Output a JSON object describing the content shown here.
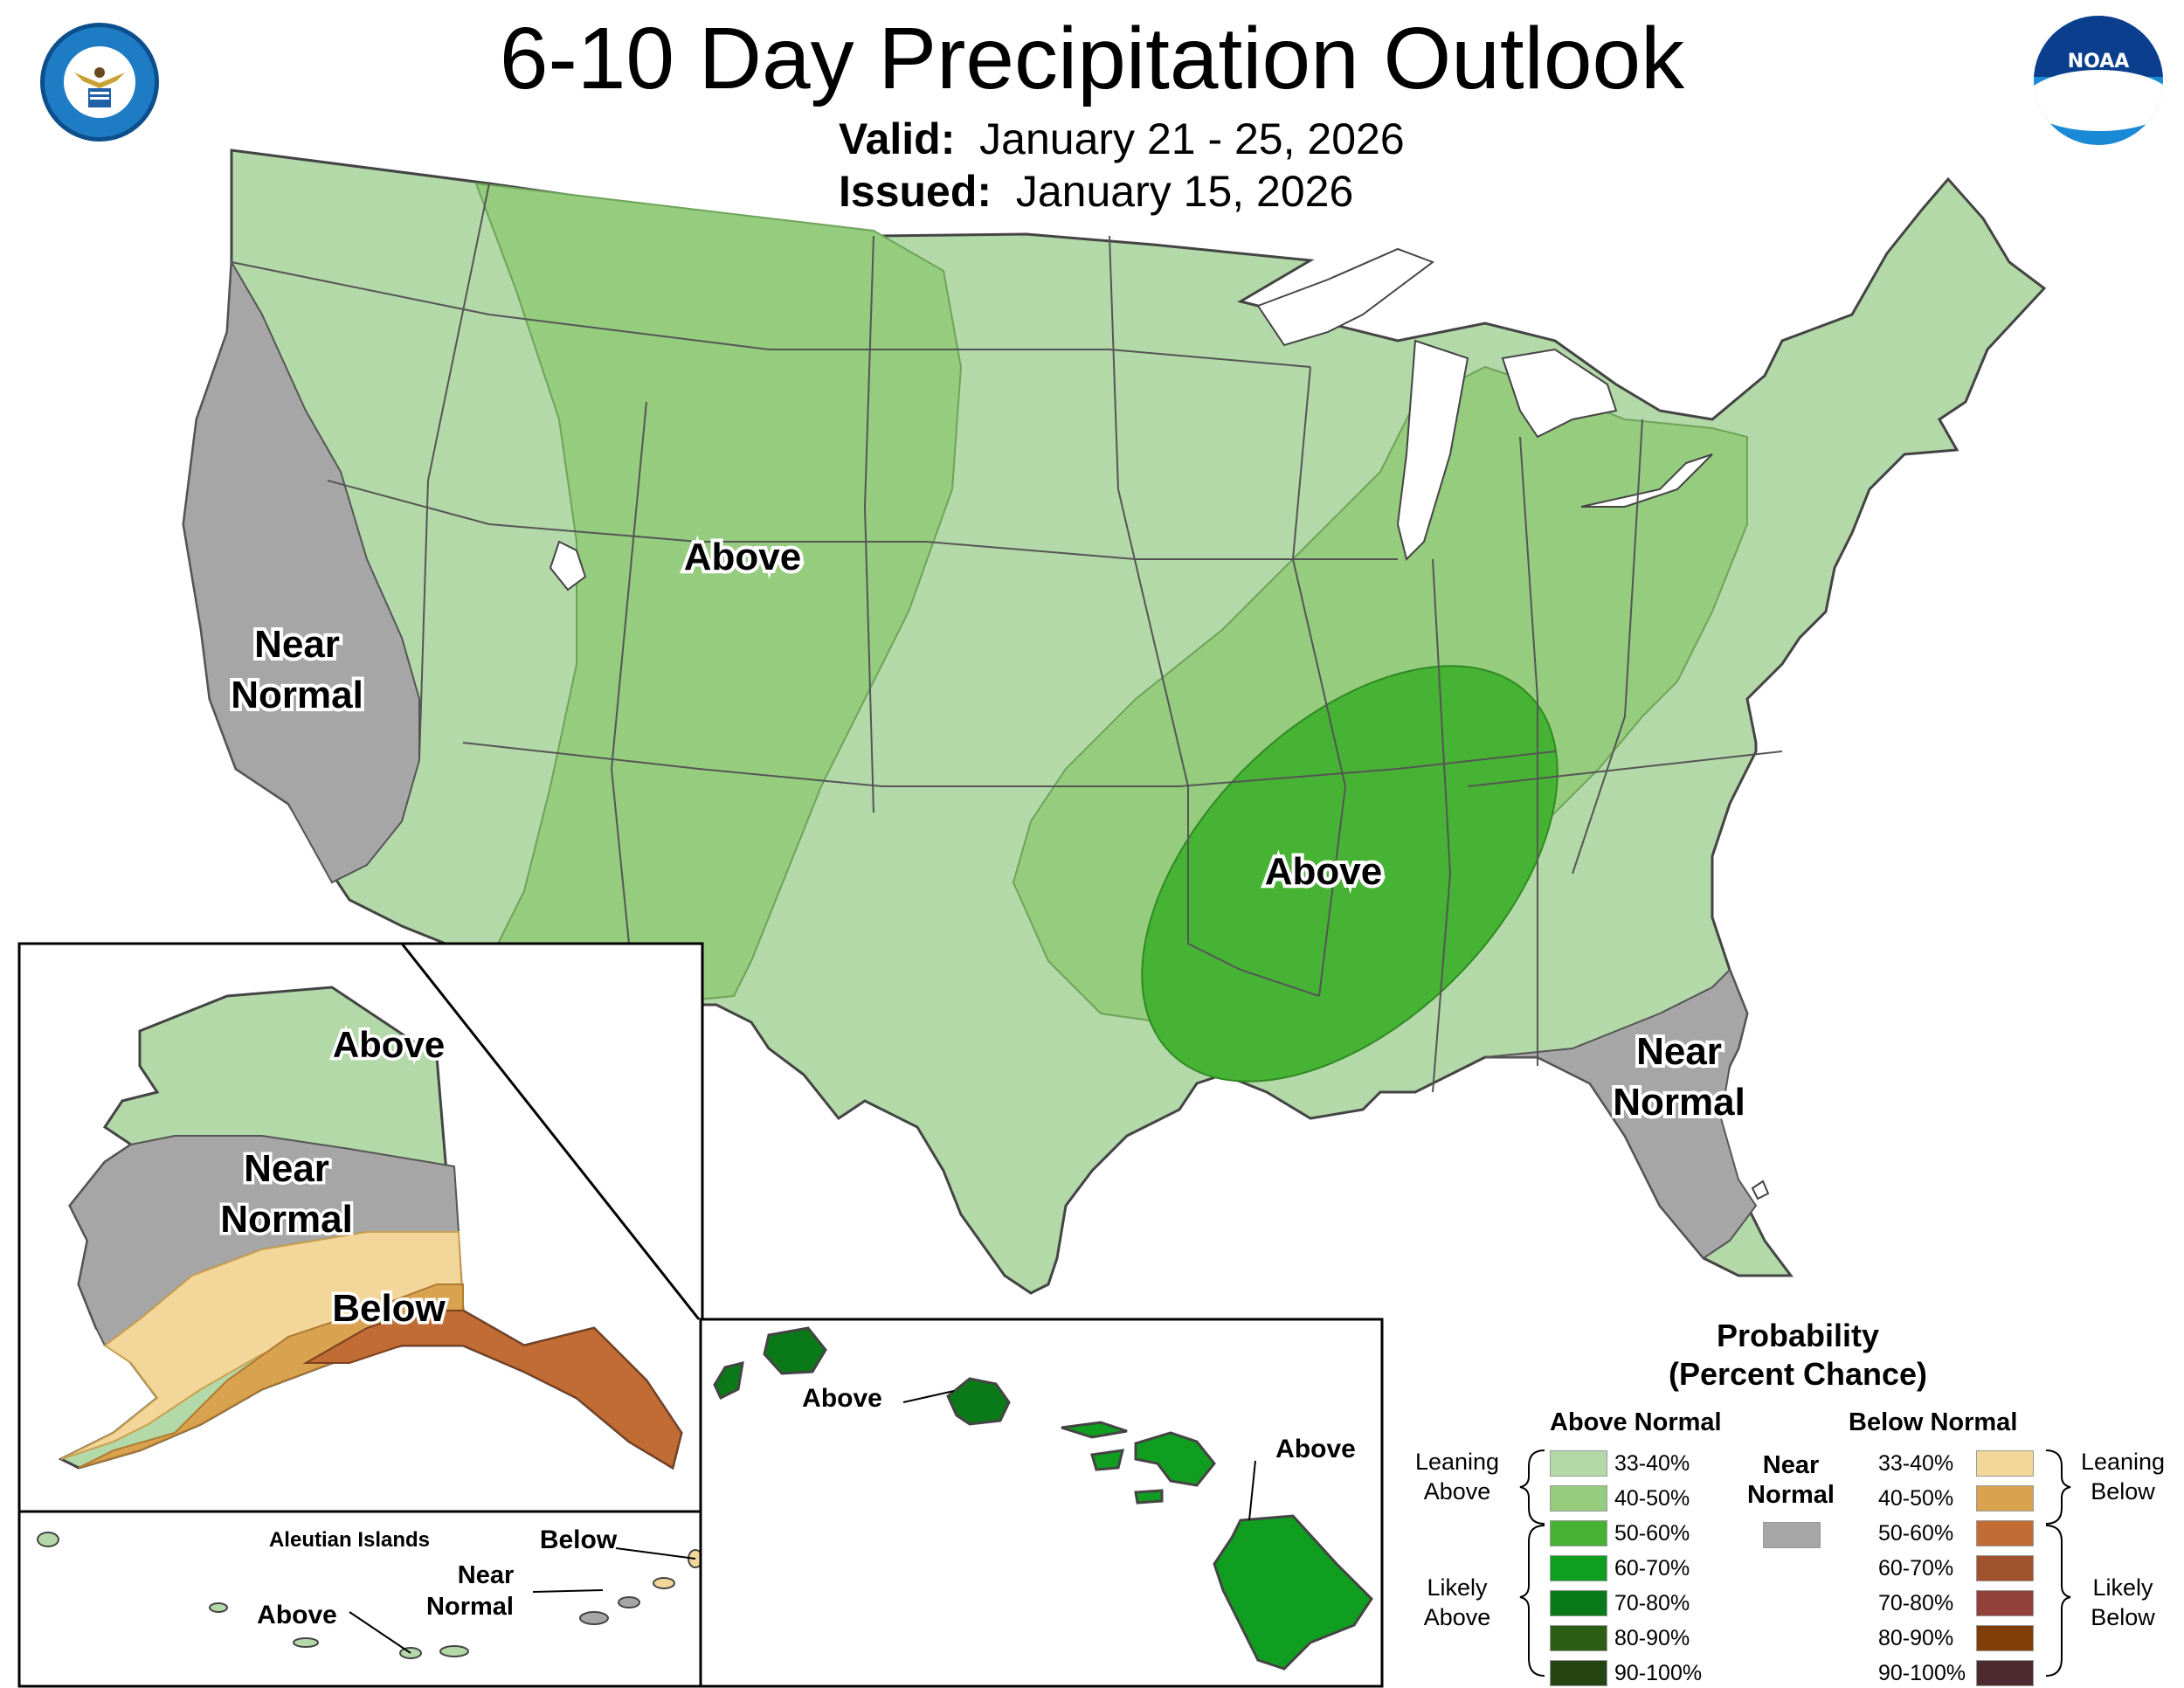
{
  "title": "6-10 Day Precipitation Outlook",
  "valid_label": "Valid:",
  "valid_dates": "January 21 - 25, 2026",
  "issued_label": "Issued:",
  "issued_date": "January 15, 2026",
  "logos": {
    "doc_seal": "department-of-commerce-seal",
    "noaa_logo": "noaa-logo",
    "noaa_text": "NOAA"
  },
  "map_labels": {
    "conus_near_normal_west_1": "Near",
    "conus_near_normal_west_2": "Normal",
    "conus_above_north": "Above",
    "conus_above_south": "Above",
    "conus_near_normal_fl_1": "Near",
    "conus_near_normal_fl_2": "Normal",
    "ak_above": "Above",
    "ak_near_1": "Near",
    "ak_near_2": "Normal",
    "ak_below": "Below",
    "aleutian_title": "Aleutian Islands",
    "aleutian_below": "Below",
    "aleutian_near_1": "Near",
    "aleutian_near_2": "Normal",
    "aleutian_above": "Above",
    "hi_above_1": "Above",
    "hi_above_2": "Above"
  },
  "legend": {
    "title_1": "Probability",
    "title_2": "(Percent Chance)",
    "above_header": "Above Normal",
    "below_header": "Below Normal",
    "near_1": "Near",
    "near_2": "Normal",
    "near_color": "#a6a6a6",
    "leaning_above_1": "Leaning",
    "leaning_above_2": "Above",
    "likely_above_1": "Likely",
    "likely_above_2": "Above",
    "leaning_below_1": "Leaning",
    "leaning_below_2": "Below",
    "likely_below_1": "Likely",
    "likely_below_2": "Below",
    "above": [
      {
        "label": "33-40%",
        "color": "#b3d9a8"
      },
      {
        "label": "40-50%",
        "color": "#95cc7e"
      },
      {
        "label": "50-60%",
        "color": "#47b334"
      },
      {
        "label": "60-70%",
        "color": "#0f9e1f"
      },
      {
        "label": "70-80%",
        "color": "#0a7a18"
      },
      {
        "label": "80-90%",
        "color": "#2d5e16"
      },
      {
        "label": "90-100%",
        "color": "#244511"
      }
    ],
    "below": [
      {
        "label": "33-40%",
        "color": "#f2d69a"
      },
      {
        "label": "40-50%",
        "color": "#d9a24e"
      },
      {
        "label": "50-60%",
        "color": "#c06c34"
      },
      {
        "label": "60-70%",
        "color": "#a0522d"
      },
      {
        "label": "70-80%",
        "color": "#92403a"
      },
      {
        "label": "80-90%",
        "color": "#7f3e06"
      },
      {
        "label": "90-100%",
        "color": "#4d2a2e"
      }
    ]
  }
}
